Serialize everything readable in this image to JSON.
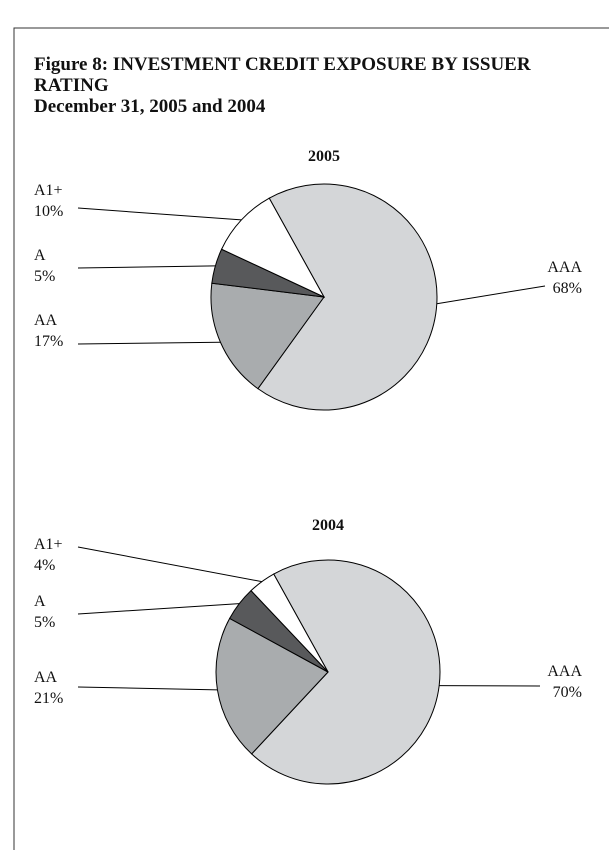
{
  "header": {
    "title": "Figure 8:  INVESTMENT CREDIT EXPOSURE BY ISSUER RATING",
    "subtitle": "December 31, 2005 and 2004"
  },
  "chart_data": [
    {
      "type": "pie",
      "title": "2005",
      "categories": [
        "AAA",
        "AA",
        "A",
        "A1+"
      ],
      "values": [
        68,
        17,
        5,
        10
      ],
      "value_labels": [
        "68%",
        "17%",
        "5%",
        "10%"
      ],
      "colors": [
        "#d4d6d8",
        "#a9acae",
        "#58595b",
        "#ffffff"
      ]
    },
    {
      "type": "pie",
      "title": "2004",
      "categories": [
        "AAA",
        "AA",
        "A",
        "A1+"
      ],
      "values": [
        70,
        21,
        5,
        4
      ],
      "value_labels": [
        "70%",
        "21%",
        "5%",
        "4%"
      ],
      "colors": [
        "#d4d6d8",
        "#a9acae",
        "#58595b",
        "#ffffff"
      ]
    }
  ]
}
